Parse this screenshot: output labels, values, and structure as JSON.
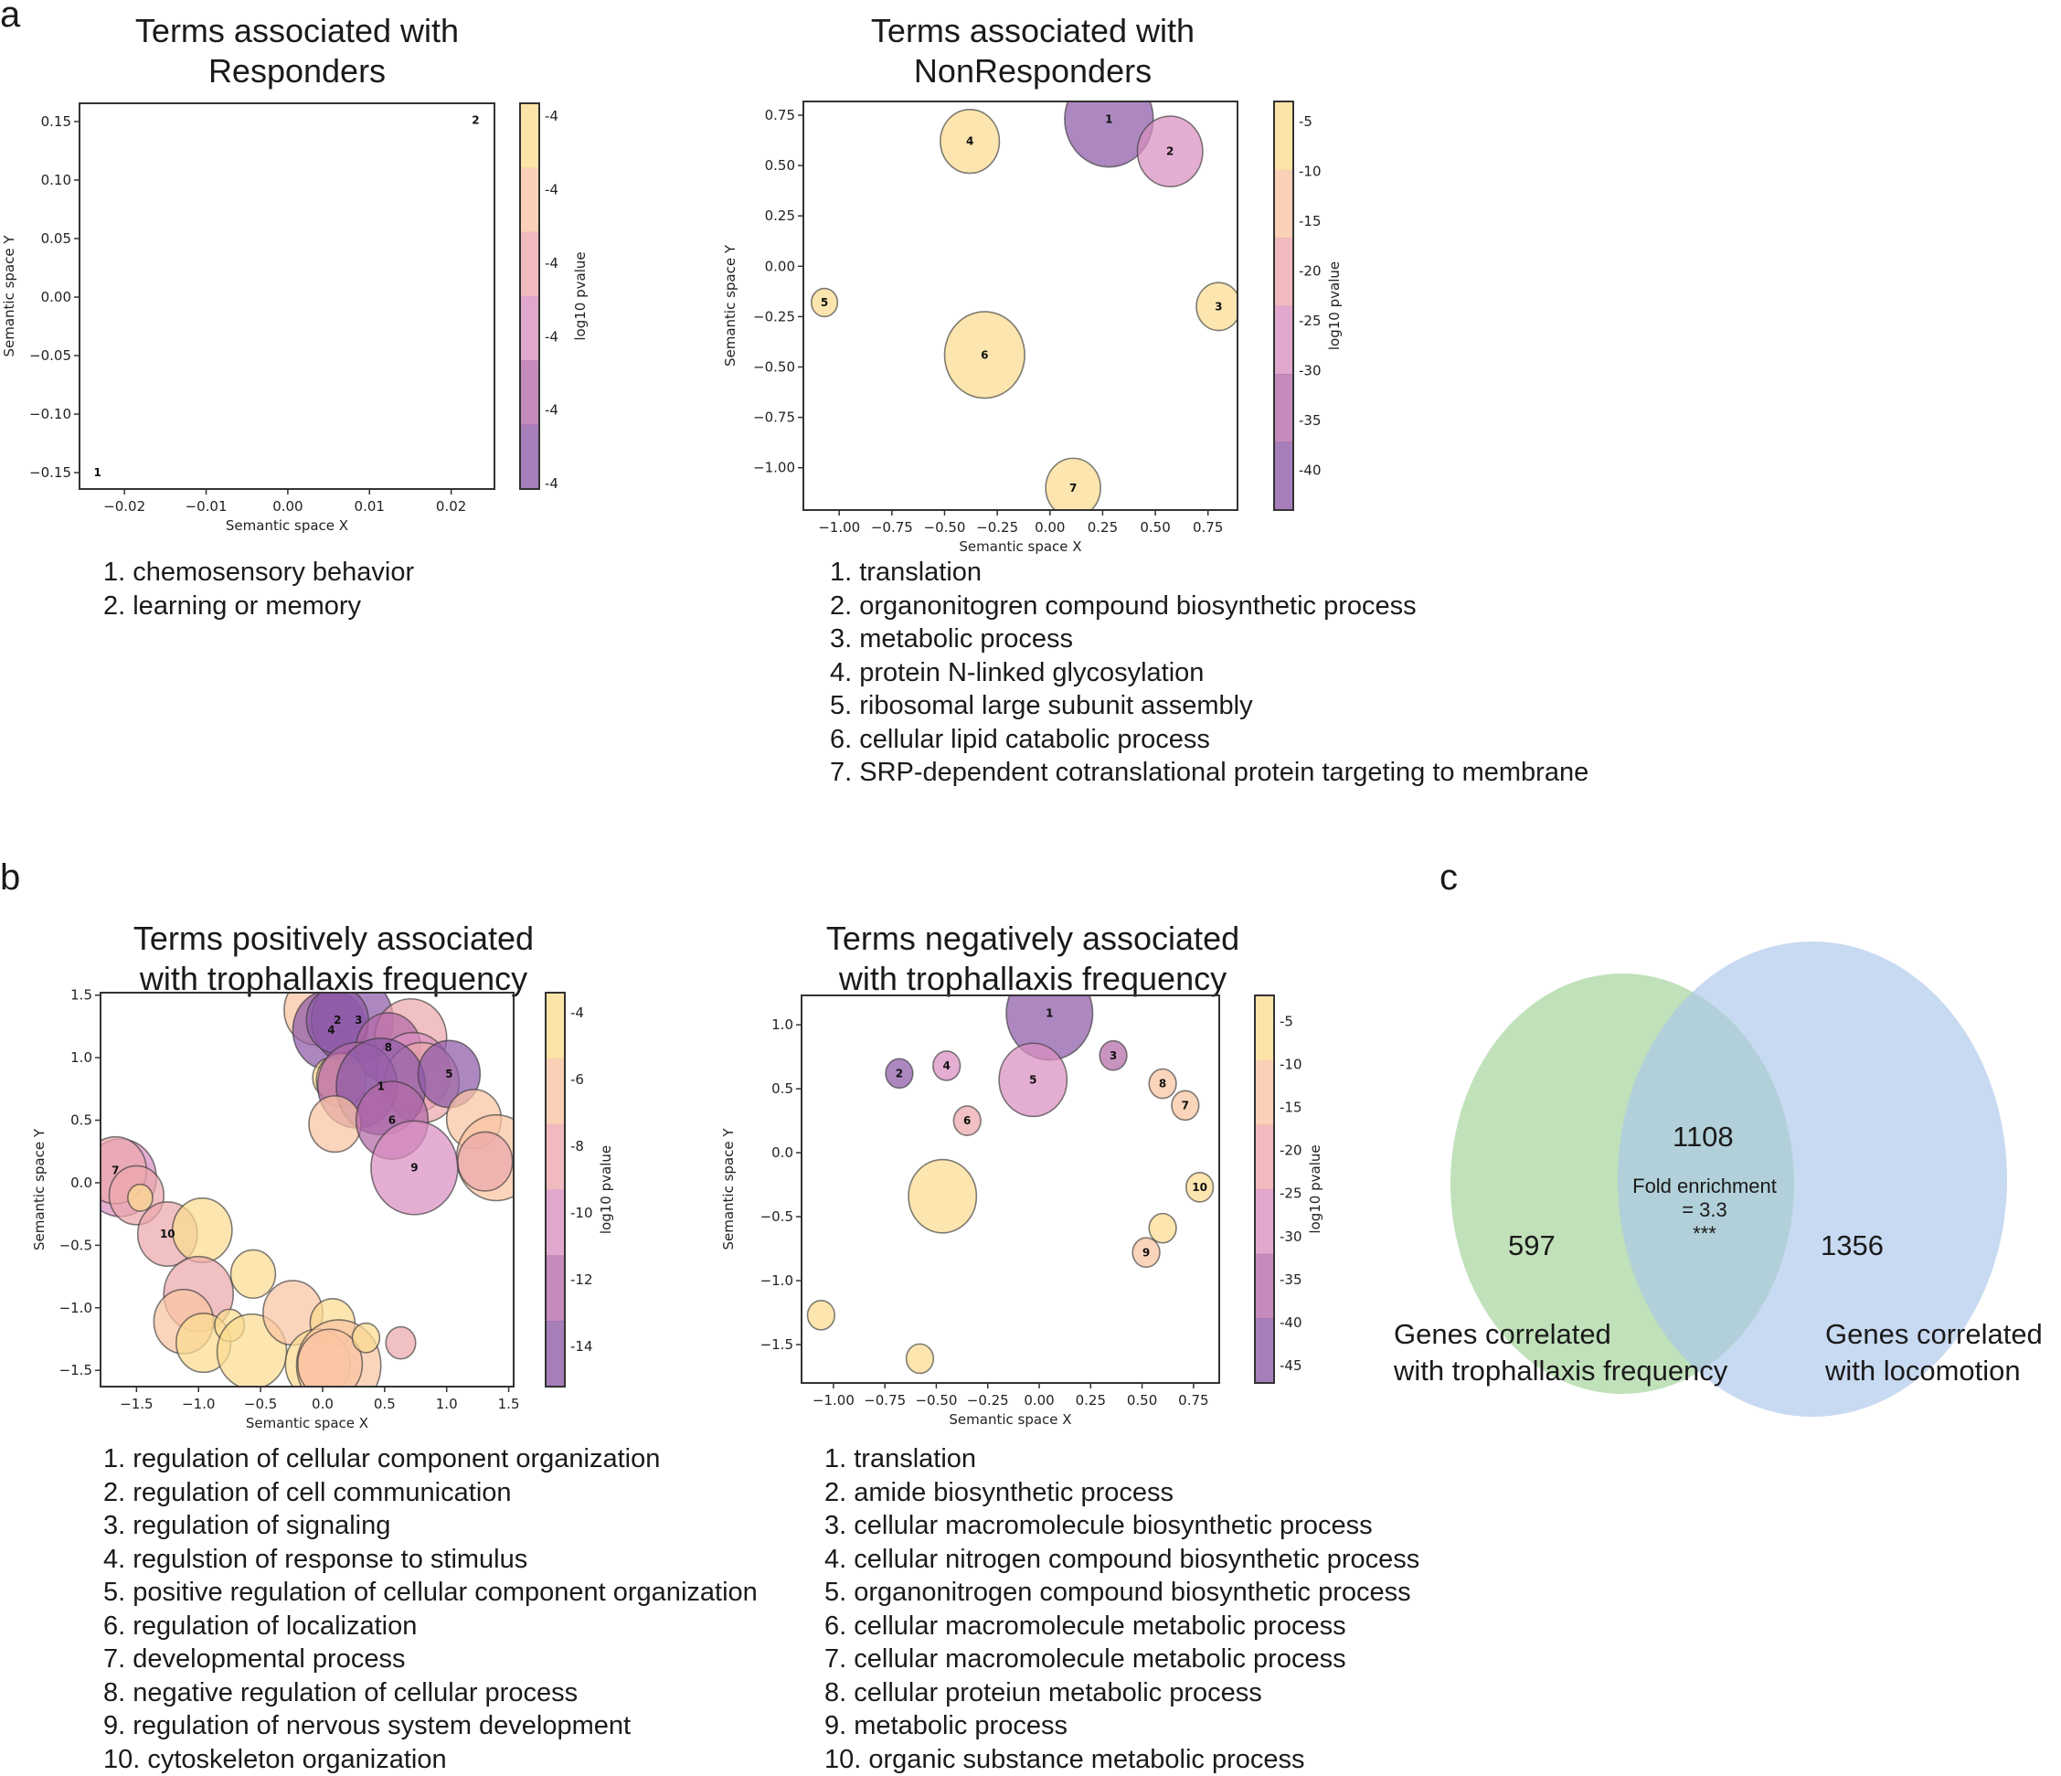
{
  "panel_labels": {
    "a": "a",
    "b": "b",
    "c": "c"
  },
  "colorbar_palette": [
    "#8d5aa7",
    "#b46aa8",
    "#d98fc0",
    "#eca7ac",
    "#f9c4a2",
    "#fbdb90"
  ],
  "chart_data": [
    {
      "id": "responders",
      "type": "scatter",
      "title_lines": [
        "Terms associated with",
        "Responders"
      ],
      "xlabel": "Semantic space X",
      "ylabel": "Semantic space Y",
      "xlim": [
        -0.0255,
        0.0253
      ],
      "ylim": [
        -0.164,
        0.1656
      ],
      "xticks": [
        -0.02,
        -0.01,
        0.0,
        0.01,
        0.02
      ],
      "xtick_labels": [
        "−0.02",
        "−0.01",
        "0.00",
        "0.01",
        "0.02"
      ],
      "yticks": [
        -0.15,
        -0.1,
        -0.05,
        0.0,
        0.05,
        0.1,
        0.15
      ],
      "ytick_labels": [
        "−0.15",
        "−0.10",
        "−0.05",
        "0.00",
        "0.05",
        "0.10",
        "0.15"
      ],
      "grid": false,
      "colorbar": {
        "label": "log10 pvalue",
        "tick_labels": [
          "-4",
          "-4",
          "-4",
          "-4",
          "-4",
          "-4"
        ]
      },
      "points": [
        {
          "label": "1",
          "x": -0.0233,
          "y": -0.15,
          "r": 0.0023,
          "color_level": 0
        },
        {
          "label": "2",
          "x": 0.023,
          "y": 0.151,
          "r": 0.0047,
          "color_level": 5
        }
      ],
      "terms": [
        "1. chemosensory behavior",
        "2. learning or memory"
      ]
    },
    {
      "id": "nonresponders",
      "type": "scatter",
      "title_lines": [
        "Terms associated with",
        "NonResponders"
      ],
      "xlabel": "Semantic space X",
      "ylabel": "Semantic space Y",
      "xlim": [
        -1.17,
        0.89
      ],
      "ylim": [
        -1.21,
        0.818
      ],
      "xticks": [
        -1.0,
        -0.75,
        -0.5,
        -0.25,
        0.0,
        0.25,
        0.5,
        0.75
      ],
      "xtick_labels": [
        "−1.00",
        "−0.75",
        "−0.50",
        "−0.25",
        "0.00",
        "0.25",
        "0.50",
        "0.75"
      ],
      "yticks": [
        -1.0,
        -0.75,
        -0.5,
        -0.25,
        0.0,
        0.25,
        0.5,
        0.75
      ],
      "ytick_labels": [
        "−1.00",
        "−0.75",
        "−0.50",
        "−0.25",
        "0.00",
        "0.25",
        "0.50",
        "0.75"
      ],
      "grid": false,
      "colorbar": {
        "label": "log10 pvalue",
        "tick_labels": [
          "-40",
          "-35",
          "-30",
          "-25",
          "-20",
          "-15",
          "-10",
          "-5"
        ],
        "range": [
          -44,
          -3
        ]
      },
      "points": [
        {
          "label": "1",
          "x": 0.28,
          "y": 0.73,
          "r": 0.21,
          "color_level": 0
        },
        {
          "label": "2",
          "x": 0.57,
          "y": 0.57,
          "r": 0.155,
          "color_level": 2
        },
        {
          "label": "3",
          "x": 0.8,
          "y": -0.2,
          "r": 0.105,
          "color_level": 5
        },
        {
          "label": "4",
          "x": -0.38,
          "y": 0.62,
          "r": 0.14,
          "color_level": 5
        },
        {
          "label": "5",
          "x": -1.07,
          "y": -0.18,
          "r": 0.062,
          "color_level": 5
        },
        {
          "label": "6",
          "x": -0.31,
          "y": -0.44,
          "r": 0.19,
          "color_level": 5
        },
        {
          "label": "7",
          "x": 0.11,
          "y": -1.1,
          "r": 0.13,
          "color_level": 5
        }
      ],
      "terms": [
        "1. translation",
        "2. organonitogren compound biosynthetic process",
        "3. metabolic process",
        "4. protein N-linked glycosylation",
        "5. ribosomal large subunit assembly",
        "6. cellular lipid catabolic process",
        "7. SRP-dependent cotranslational protein targeting to membrane"
      ]
    },
    {
      "id": "positive",
      "type": "scatter",
      "title_lines": [
        "Terms positively associated",
        "with trophallaxis frequency"
      ],
      "xlabel": "Semantic space X",
      "ylabel": "Semantic space Y",
      "xlim": [
        -1.79,
        1.54
      ],
      "ylim": [
        -1.63,
        1.52
      ],
      "xticks": [
        -1.5,
        -1.0,
        -0.5,
        0.0,
        0.5,
        1.0,
        1.5
      ],
      "xtick_labels": [
        "−1.5",
        "−1.0",
        "−0.5",
        "0.0",
        "0.5",
        "1.0",
        "1.5"
      ],
      "yticks": [
        -1.5,
        -1.0,
        -0.5,
        0.0,
        0.5,
        1.0,
        1.5
      ],
      "ytick_labels": [
        "−1.5",
        "−1.0",
        "−0.5",
        "0.0",
        "0.5",
        "1.0",
        "1.5"
      ],
      "grid": false,
      "colorbar": {
        "label": "log10 pvalue",
        "tick_labels": [
          "-14",
          "-12",
          "-10",
          "-8",
          "-6",
          "-4"
        ],
        "range": [
          -15.2,
          -3.4
        ]
      },
      "points": [
        {
          "label": "",
          "x": -0.05,
          "y": 1.38,
          "r": 0.26,
          "color_level": 4
        },
        {
          "label": "",
          "x": 0.06,
          "y": 1.22,
          "r": 0.3,
          "color_level": 0
        },
        {
          "label": "",
          "x": 0.24,
          "y": 1.3,
          "r": 0.33,
          "color_level": 0
        },
        {
          "label": "2",
          "x": 0.12,
          "y": 1.3,
          "r": 0.25,
          "color_level": 0
        },
        {
          "label": "",
          "x": 0.71,
          "y": 1.16,
          "r": 0.29,
          "color_level": 3
        },
        {
          "label": "",
          "x": 0.53,
          "y": 1.08,
          "r": 0.26,
          "color_level": 1
        },
        {
          "label": "",
          "x": 0.73,
          "y": 0.88,
          "r": 0.3,
          "color_level": 2
        },
        {
          "label": "",
          "x": 0.8,
          "y": 0.8,
          "r": 0.3,
          "color_level": 3
        },
        {
          "label": "",
          "x": 0.07,
          "y": 0.84,
          "r": 0.15,
          "color_level": 5
        },
        {
          "label": "",
          "x": 0.15,
          "y": 0.82,
          "r": 0.2,
          "color_level": 4
        },
        {
          "label": "",
          "x": 0.28,
          "y": 0.78,
          "r": 0.32,
          "color_level": 1
        },
        {
          "label": "1",
          "x": 0.47,
          "y": 0.77,
          "r": 0.36,
          "color_level": 0
        },
        {
          "label": "5",
          "x": 1.02,
          "y": 0.87,
          "r": 0.25,
          "color_level": 0
        },
        {
          "label": "",
          "x": 1.22,
          "y": 0.51,
          "r": 0.22,
          "color_level": 4
        },
        {
          "label": "",
          "x": 0.1,
          "y": 0.47,
          "r": 0.21,
          "color_level": 4
        },
        {
          "label": "6",
          "x": 0.56,
          "y": 0.5,
          "r": 0.29,
          "color_level": 1
        },
        {
          "label": "",
          "x": 1.4,
          "y": 0.2,
          "r": 0.32,
          "color_level": 4
        },
        {
          "label": "",
          "x": 1.31,
          "y": 0.17,
          "r": 0.22,
          "color_level": 3
        },
        {
          "label": "9",
          "x": 0.74,
          "y": 0.12,
          "r": 0.35,
          "color_level": 2
        },
        {
          "label": "8",
          "x": 0.53,
          "y": 1.08,
          "r": 0.01,
          "color_level": 1
        },
        {
          "label": "3",
          "x": 0.29,
          "y": 1.3,
          "r": 0.01,
          "color_level": 0
        },
        {
          "label": "4",
          "x": 0.07,
          "y": 1.22,
          "r": 0.01,
          "color_level": 0
        },
        {
          "label": "",
          "x": -1.63,
          "y": 0.04,
          "r": 0.29,
          "color_level": 2
        },
        {
          "label": "7",
          "x": -1.67,
          "y": 0.1,
          "r": 0.25,
          "color_level": 3
        },
        {
          "label": "",
          "x": -1.5,
          "y": -0.1,
          "r": 0.22,
          "color_level": 3
        },
        {
          "label": "",
          "x": -1.47,
          "y": -0.12,
          "r": 0.1,
          "color_level": 5
        },
        {
          "label": "10",
          "x": -1.25,
          "y": -0.41,
          "r": 0.24,
          "color_level": 3
        },
        {
          "label": "",
          "x": -0.97,
          "y": -0.38,
          "r": 0.24,
          "color_level": 5
        },
        {
          "label": "",
          "x": -1.0,
          "y": -0.89,
          "r": 0.28,
          "color_level": 3
        },
        {
          "label": "",
          "x": -0.56,
          "y": -0.73,
          "r": 0.18,
          "color_level": 5
        },
        {
          "label": "",
          "x": -1.12,
          "y": -1.11,
          "r": 0.24,
          "color_level": 4
        },
        {
          "label": "",
          "x": -0.96,
          "y": -1.28,
          "r": 0.22,
          "color_level": 5
        },
        {
          "label": "",
          "x": -0.75,
          "y": -1.14,
          "r": 0.12,
          "color_level": 5
        },
        {
          "label": "",
          "x": -0.57,
          "y": -1.35,
          "r": 0.28,
          "color_level": 5
        },
        {
          "label": "",
          "x": -0.24,
          "y": -1.04,
          "r": 0.24,
          "color_level": 4
        },
        {
          "label": "",
          "x": 0.08,
          "y": -1.12,
          "r": 0.18,
          "color_level": 5
        },
        {
          "label": "",
          "x": -0.04,
          "y": -1.45,
          "r": 0.26,
          "color_level": 5
        },
        {
          "label": "",
          "x": 0.13,
          "y": -1.46,
          "r": 0.34,
          "color_level": 4
        },
        {
          "label": "",
          "x": 0.06,
          "y": -1.45,
          "r": 0.26,
          "color_level": 4
        },
        {
          "label": "",
          "x": 0.35,
          "y": -1.24,
          "r": 0.11,
          "color_level": 5
        },
        {
          "label": "",
          "x": 0.63,
          "y": -1.28,
          "r": 0.12,
          "color_level": 3
        }
      ],
      "terms": [
        "1. regulation of cellular component organization",
        "2. regulation of cell communication",
        "3. regulation of signaling",
        "4. regulstion of response to stimulus",
        "5. positive regulation of cellular component organization",
        "6. regulation of localization",
        "7. developmental process",
        "8. negative regulation of cellular process",
        "9. regulation of nervous system development",
        "10. cytoskeleton organization"
      ]
    },
    {
      "id": "negative",
      "type": "scatter",
      "title_lines": [
        "Terms negatively associated",
        "with trophallaxis frequency"
      ],
      "xlabel": "Semantic space X",
      "ylabel": "Semantic space Y",
      "xlim": [
        -1.155,
        0.875
      ],
      "ylim": [
        -1.8,
        1.23
      ],
      "xticks": [
        -1.0,
        -0.75,
        -0.5,
        -0.25,
        0.0,
        0.25,
        0.5,
        0.75
      ],
      "xtick_labels": [
        "−1.00",
        "−0.75",
        "−0.50",
        "−0.25",
        "0.00",
        "0.25",
        "0.50",
        "0.75"
      ],
      "yticks": [
        -1.5,
        -1.0,
        -0.5,
        0.0,
        0.5,
        1.0
      ],
      "ytick_labels": [
        "−1.5",
        "−1.0",
        "−0.5",
        "0.0",
        "0.5",
        "1.0"
      ],
      "grid": false,
      "colorbar": {
        "label": "log10 pvalue",
        "tick_labels": [
          "-45",
          "-40",
          "-35",
          "-30",
          "-25",
          "-20",
          "-15",
          "-10",
          "-5"
        ],
        "range": [
          -47,
          -2
        ]
      },
      "points": [
        {
          "label": "1",
          "x": 0.05,
          "y": 1.09,
          "r": 0.21,
          "color_level": 0
        },
        {
          "label": "2",
          "x": -0.68,
          "y": 0.62,
          "r": 0.066,
          "color_level": 0
        },
        {
          "label": "3",
          "x": 0.36,
          "y": 0.76,
          "r": 0.066,
          "color_level": 1
        },
        {
          "label": "4",
          "x": -0.45,
          "y": 0.68,
          "r": 0.066,
          "color_level": 2
        },
        {
          "label": "5",
          "x": -0.03,
          "y": 0.57,
          "r": 0.165,
          "color_level": 2
        },
        {
          "label": "6",
          "x": -0.35,
          "y": 0.25,
          "r": 0.066,
          "color_level": 3
        },
        {
          "label": "7",
          "x": 0.71,
          "y": 0.37,
          "r": 0.066,
          "color_level": 4
        },
        {
          "label": "8",
          "x": 0.6,
          "y": 0.54,
          "r": 0.066,
          "color_level": 4
        },
        {
          "label": "9",
          "x": 0.52,
          "y": -0.78,
          "r": 0.066,
          "color_level": 4
        },
        {
          "label": "10",
          "x": 0.78,
          "y": -0.27,
          "r": 0.066,
          "color_level": 5
        },
        {
          "label": "",
          "x": -0.47,
          "y": -0.34,
          "r": 0.165,
          "color_level": 5
        },
        {
          "label": "",
          "x": 0.6,
          "y": -0.59,
          "r": 0.066,
          "color_level": 5
        },
        {
          "label": "",
          "x": -1.06,
          "y": -1.27,
          "r": 0.066,
          "color_level": 5
        },
        {
          "label": "",
          "x": -0.58,
          "y": -1.61,
          "r": 0.066,
          "color_level": 5
        }
      ],
      "terms": [
        "1. translation",
        "2. amide biosynthetic process",
        "3. cellular macromolecule biosynthetic process",
        "4. cellular nitrogen compound biosynthetic process",
        "5. organonitrogen compound biosynthetic process",
        "6. cellular macromolecule metabolic process",
        "7. cellular macromolecule metabolic process",
        "8. cellular proteiun metabolic process",
        "9. metabolic process",
        "10. organic substance metabolic process"
      ]
    },
    {
      "id": "venn",
      "type": "venn",
      "sets": [
        {
          "name": "Genes correlated with trophallaxis frequency",
          "label_lines": [
            "Genes correlated",
            "with trophallaxis frequency"
          ],
          "only": 597,
          "color": "#a8d5a0"
        },
        {
          "name": "Genes correlated with locomotion",
          "label_lines": [
            "Genes correlated",
            "with locomotion"
          ],
          "only": 1356,
          "color": "#aac6ea"
        }
      ],
      "intersection": 1108,
      "annotation_lines": [
        "Fold enrichment",
        "= 3.3",
        "***"
      ],
      "overlap_color": "#9fc5c4"
    }
  ]
}
